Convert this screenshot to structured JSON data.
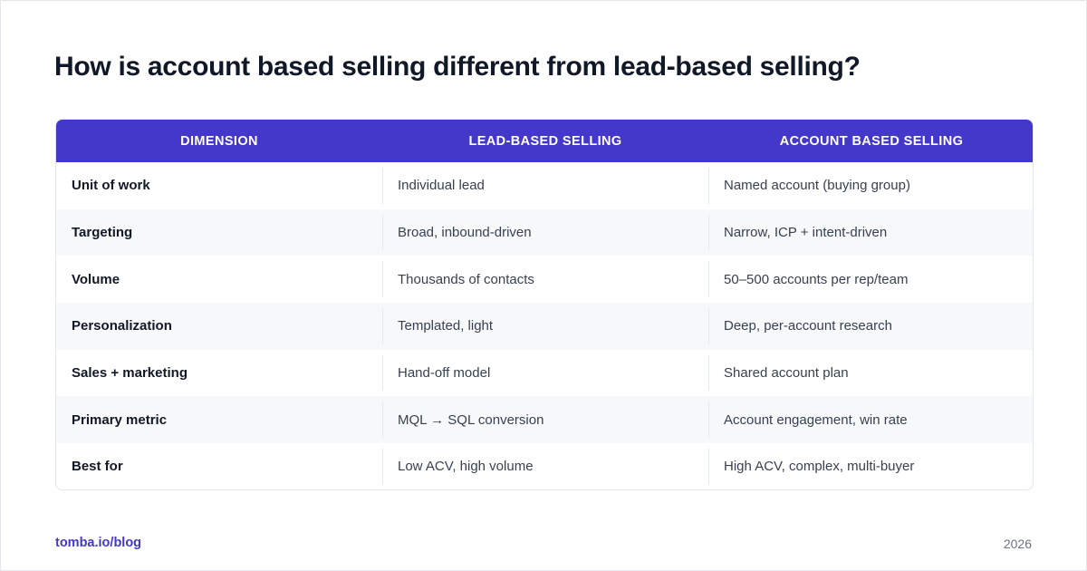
{
  "title": "How is account based selling different from lead-based selling?",
  "table": {
    "headers": [
      "DIMENSION",
      "LEAD-BASED SELLING",
      "ACCOUNT BASED SELLING"
    ],
    "rows": [
      [
        "Unit of work",
        "Individual lead",
        "Named account (buying group)"
      ],
      [
        "Targeting",
        "Broad, inbound-driven",
        "Narrow, ICP + intent-driven"
      ],
      [
        "Volume",
        "Thousands of contacts",
        "50–500 accounts per rep/team"
      ],
      [
        "Personalization",
        "Templated, light",
        "Deep, per-account research"
      ],
      [
        "Sales + marketing",
        "Hand-off model",
        "Shared account plan"
      ],
      [
        "Primary metric",
        "MQL → SQL conversion",
        "Account engagement, win rate"
      ],
      [
        "Best for",
        "Low ACV, high volume",
        "High ACV, complex, multi-buyer"
      ]
    ]
  },
  "footer": {
    "source": "tomba.io/blog",
    "year": "2026"
  },
  "colors": {
    "accent": "#4338ca",
    "title": "#111827",
    "row_alt": "#f7f8fa"
  }
}
